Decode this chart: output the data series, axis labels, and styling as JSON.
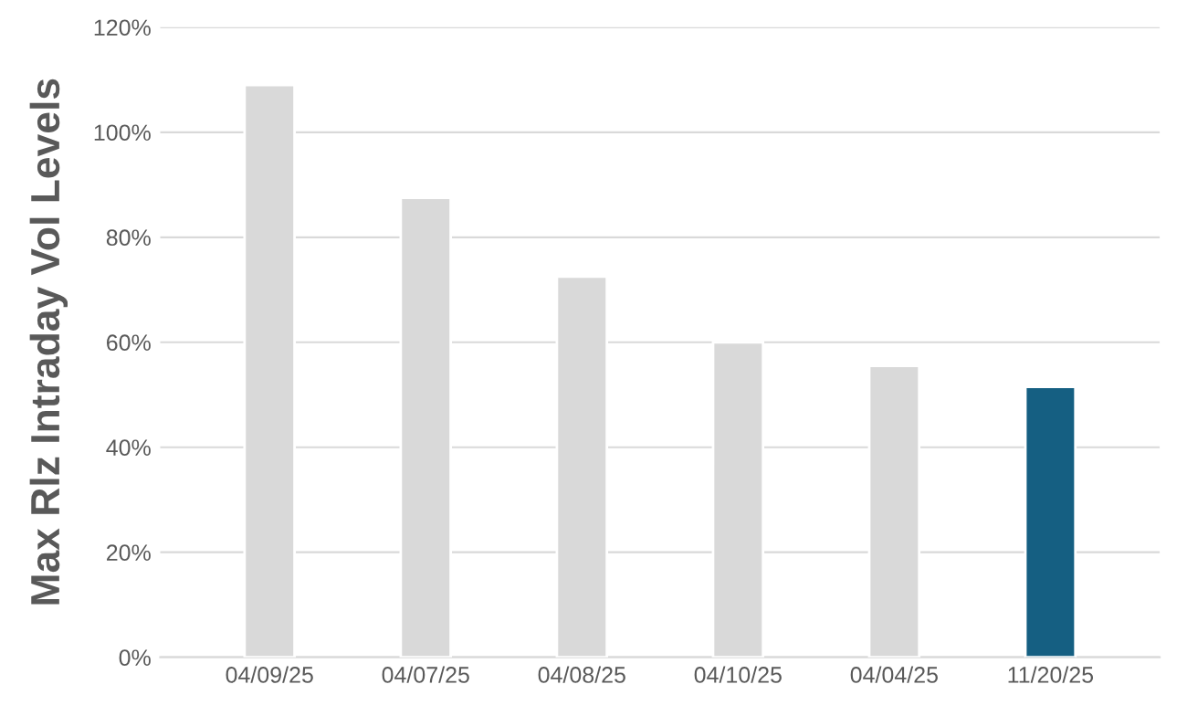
{
  "chart_data": {
    "type": "bar",
    "ylabel": "Max Rlz Intraday Vol Levels",
    "categories": [
      "04/09/25",
      "04/07/25",
      "04/08/25",
      "04/10/25",
      "04/04/25",
      "11/20/25"
    ],
    "values": [
      109,
      87.5,
      72.5,
      60,
      55.5,
      51.5
    ],
    "colors": [
      "#d9d9d9",
      "#d9d9d9",
      "#d9d9d9",
      "#d9d9d9",
      "#d9d9d9",
      "#155f82"
    ],
    "ylim": [
      0,
      120
    ],
    "yticks": [
      {
        "value": 0,
        "label": "0%"
      },
      {
        "value": 20,
        "label": "20%"
      },
      {
        "value": 40,
        "label": "40%"
      },
      {
        "value": 60,
        "label": "60%"
      },
      {
        "value": 80,
        "label": "80%"
      },
      {
        "value": 100,
        "label": "100%"
      },
      {
        "value": 120,
        "label": "120%"
      }
    ],
    "grid": "y"
  }
}
